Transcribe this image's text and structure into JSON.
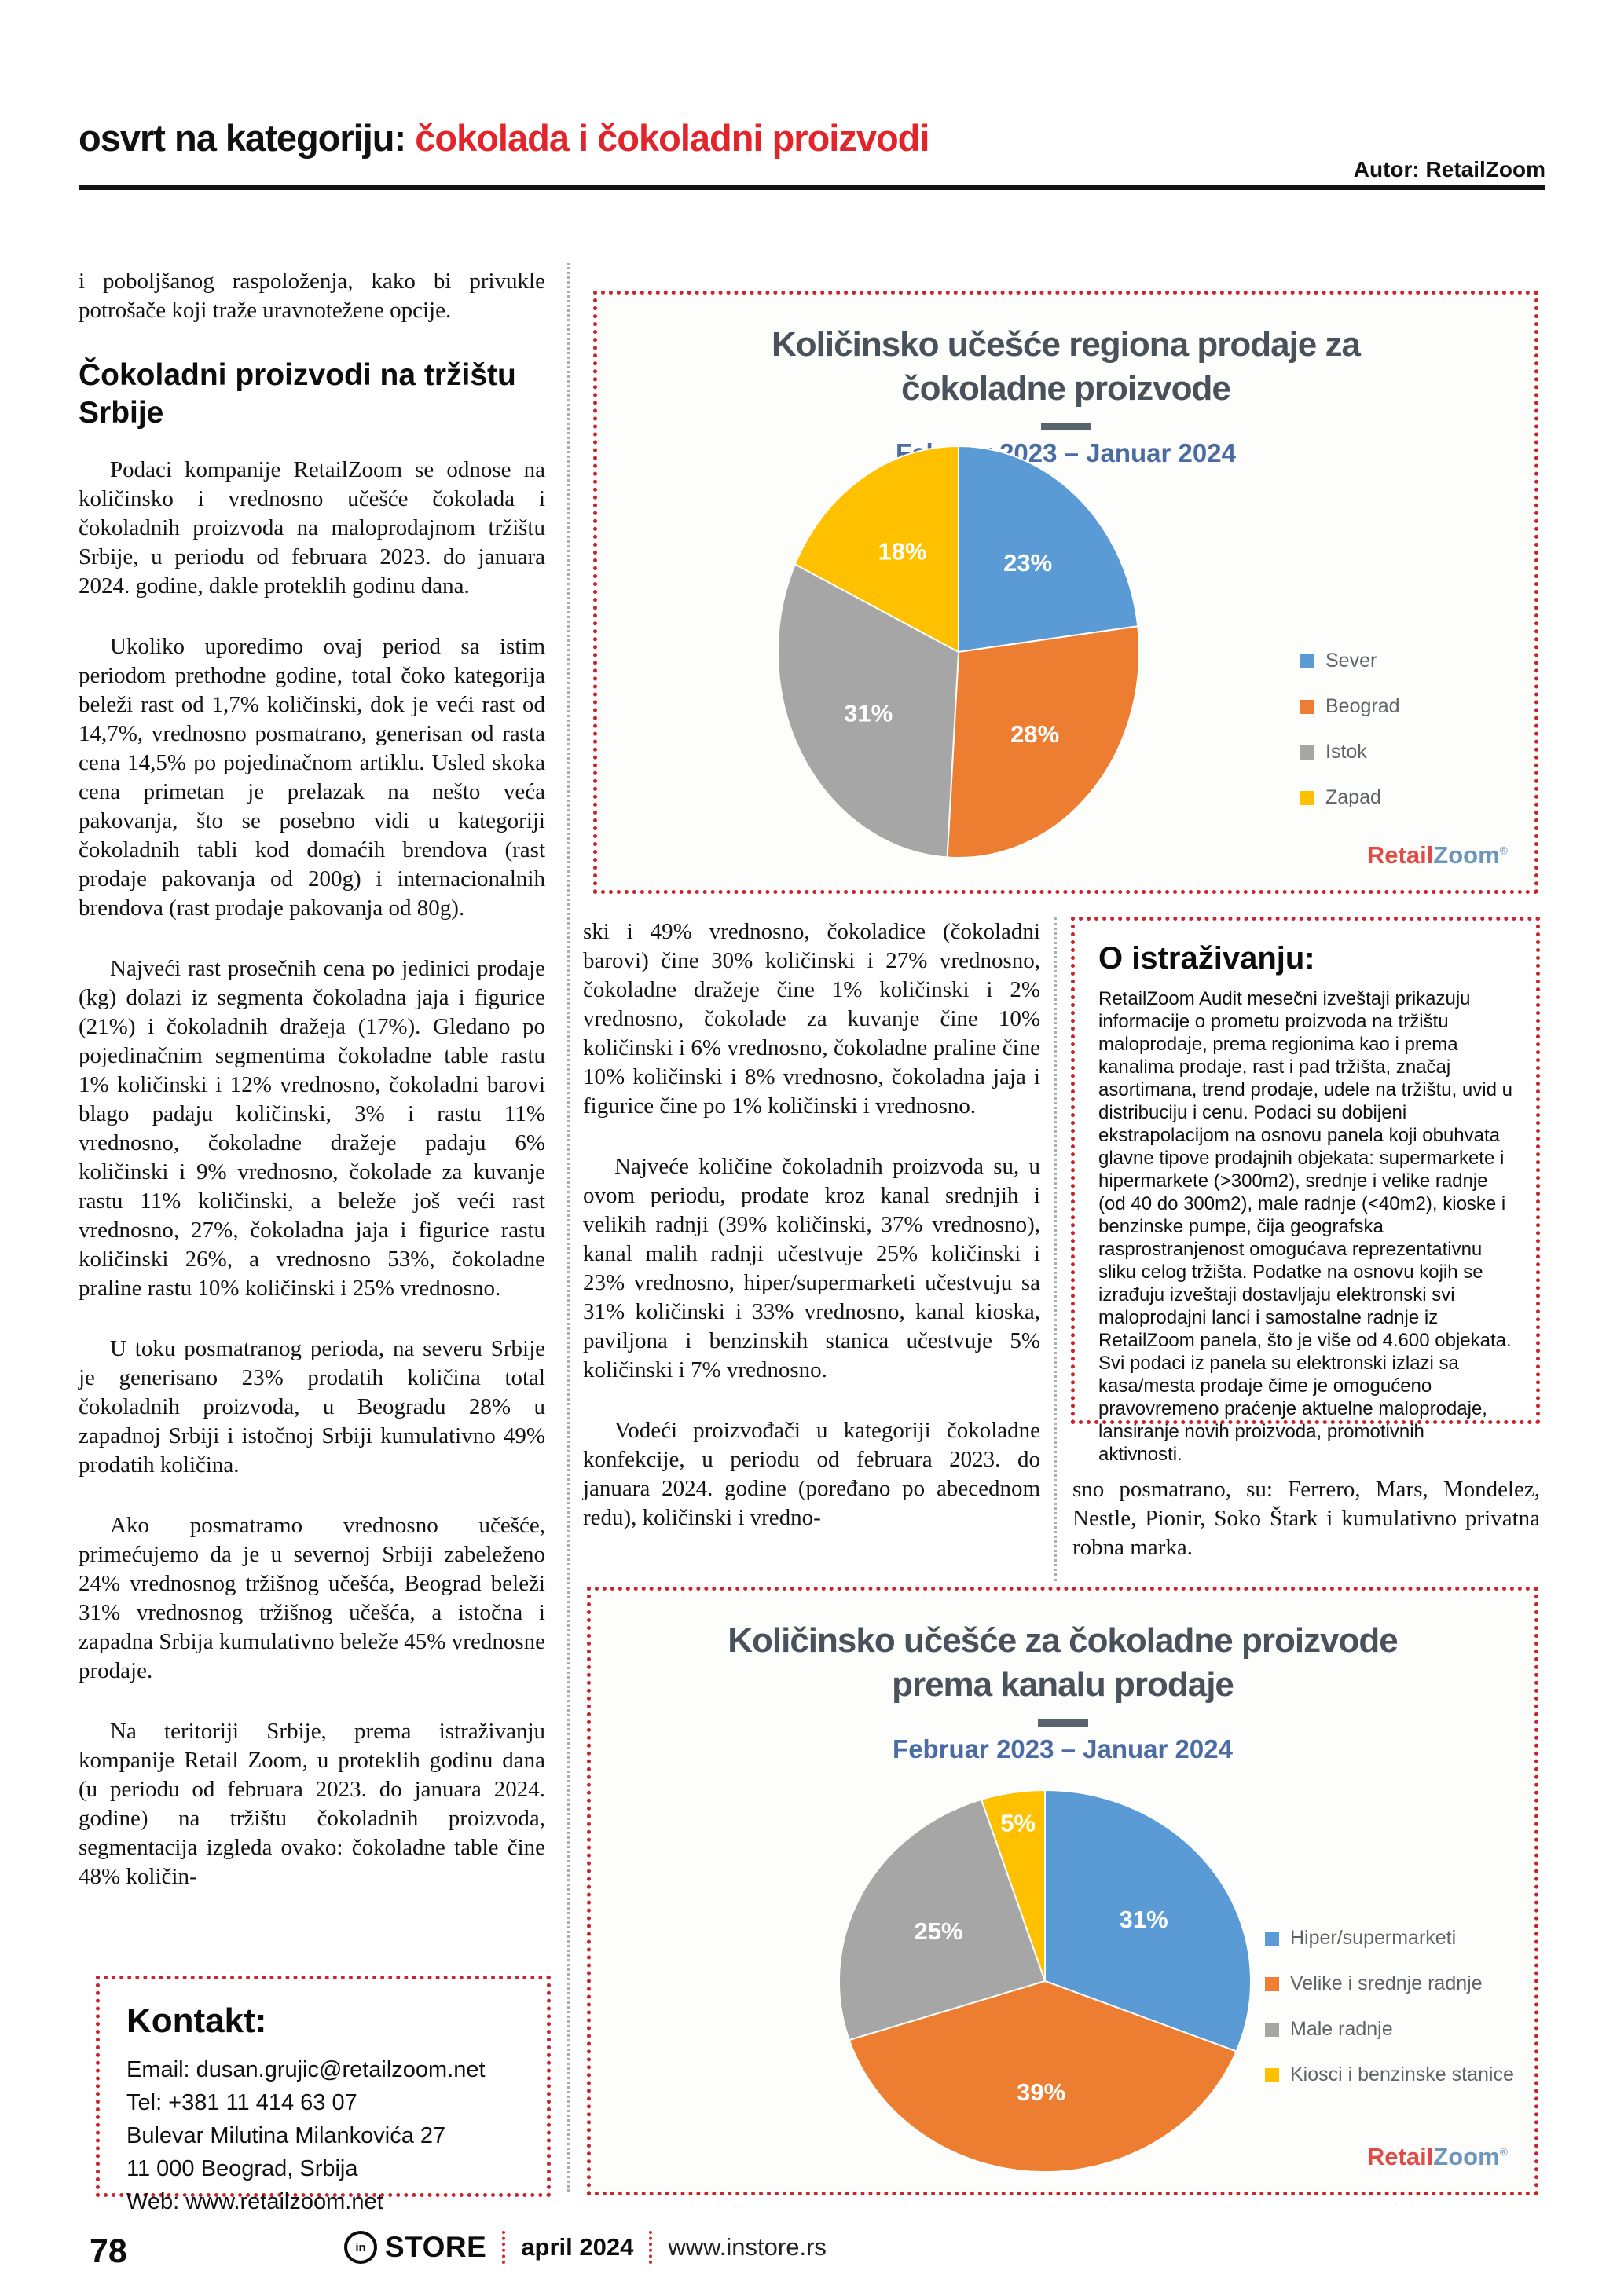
{
  "header": {
    "title_black": "osvrt na kategoriju: ",
    "title_red": "čokolada i čokoladni proizvodi",
    "author": "Autor: RetailZoom"
  },
  "article": {
    "col1": {
      "p1": "i poboljšanog raspoloženja, kako bi privukle potrošače koji traže uravnotežene opcije.",
      "heading": "Čokoladni proizvodi na tržištu Srbije",
      "p2": "Podaci kompanije RetailZoom se odnose na količinsko i vrednosno učešće čokolada i čokoladnih proizvoda na maloprodajnom tržištu Srbije, u periodu od februara 2023. do januara 2024. godine, dakle proteklih godinu dana.",
      "p3": "Ukoliko uporedimo ovaj period sa istim periodom prethodne godine, total čoko kategorija beleži rast od 1,7% količinski, dok je veći rast od 14,7%, vrednosno posmatrano, generisan od rasta cena 14,5% po pojedinačnom artiklu. Usled skoka cena primetan je prelazak na nešto veća pakovanja, što se posebno vidi u kategoriji čokoladnih tabli kod domaćih brendova (rast prodaje pakovanja od 200g) i internacionalnih brendova (rast prodaje pakovanja od 80g).",
      "p4": "Najveći rast prosečnih cena po jedinici prodaje (kg) dolazi iz segmenta čokoladna jaja i figurice (21%) i čokoladnih dražeja (17%). Gledano po pojedinačnim segmentima čokoladne table rastu 1% količinski i 12% vrednosno, čokoladni barovi blago padaju količinski, 3% i rastu 11% vrednosno, čokoladne dražeje padaju 6% količinski i 9% vrednosno, čokolade za kuvanje rastu 11% količinski, a beleže još veći rast vrednosno, 27%, čokoladna jaja i figurice rastu količinski 26%, a vrednosno 53%, čokoladne praline rastu 10% količinski i 25% vrednosno.",
      "p5": "U toku posmatranog perioda, na severu Srbije je generisano 23% prodatih količina total čokoladnih proizvoda, u Beogradu 28% u zapadnoj Srbiji i istočnoj Srbiji kumulativno 49% prodatih količina.",
      "p6": "Ako posmatramo vrednosno učešće, primećujemo da je u severnoj Srbiji zabeleženo 24% vrednosnog tržišnog učešća, Beograd beleži 31% vrednosnog tržišnog učešća, a istočna i zapadna Srbija kumulativno beleže 45% vrednosne prodaje.",
      "p7": "Na teritoriji Srbije, prema istraživanju kompanije Retail Zoom, u proteklih godinu dana (u periodu od februara 2023. do januara 2024. godine) na tržištu čokoladnih proizvoda, segmentacija izgleda ovako: čokoladne table čine 48% količin-"
    },
    "col2": {
      "p8": "ski i 49% vrednosno, čokoladice (čokoladni barovi) čine 30% količinski i 27% vrednosno, čokoladne dražeje čine 1% količinski i 2% vrednosno, čokolade za kuvanje čine 10% količinski i 6% vrednosno, čokoladne praline čine 10% količinski i 8% vrednosno, čokoladna jaja i figurice čine po 1% količinski i vrednosno.",
      "p9": "Najveće količine čokoladnih proizvoda su, u ovom periodu, prodate kroz kanal srednjih i velikih radnji (39% količinski, 37% vrednosno), kanal malih radnji učestvuje 25% količinski i 23% vrednosno, hiper/supermarketi učestvuju sa 31% količinski i 33% vrednosno, kanal kioska, paviljona i benzinskih stanica učestvuje 5% količinski i 7% vrednosno.",
      "p10": "Vodeći proizvođači u kategoriji čokoladne konfekcije, u periodu od februara 2023. do januara 2024. godine (poređano po abecednom redu), količinski i vredno-"
    },
    "col3": {
      "p11": "sno posmatrano, su: Ferrero, Mars, Mondelez, Nestle, Pionir, Soko Štark i kumulativno privatna robna marka."
    }
  },
  "about_box": {
    "title": "O istraživanju:",
    "body": "RetailZoom Audit mesečni izveštaji prikazuju informacije o prometu proizvoda na tržištu maloprodaje, prema regionima kao i prema kanalima prodaje, rast i pad tržišta, značaj asortimana, trend prodaje, udele na tržištu, uvid u distribuciju i cenu. Podaci su dobijeni ekstrapolacijom na osnovu panela koji obuhvata glavne tipove prodajnih objekata: supermarkete i hipermarkete (>300m2), srednje i velike radnje (od 40 do 300m2), male radnje (<40m2), kioske i benzinske pumpe, čija geografska rasprostranjenost omogućava reprezentativnu sliku celog tržišta. Podatke na osnovu kojih se izrađuju izveštaji dostavljaju elektronski svi maloprodajni lanci i samostalne radnje iz RetailZoom panela, što je više od 4.600 objekata. Svi podaci iz panela su elektronski izlazi sa kasa/mesta prodaje čime je omogućeno pravovremeno praćenje aktuelne maloprodaje, lansiranje novih proizvoda, promotivnih aktivnosti."
  },
  "contact_box": {
    "title": "Kontakt:",
    "lines": [
      "Email: dusan.grujic@retailzoom.net",
      "Tel:  +381 11 414 63 07",
      "Bulevar Milutina Milankovića 27",
      "11 000 Beograd, Srbija",
      "Web: www.retailzoom.net"
    ]
  },
  "branding": {
    "retail": "Retail",
    "zoom": "Zoom",
    "reg": "®"
  },
  "chart_data": [
    {
      "type": "pie",
      "title": "Količinsko učešće regiona prodaje za čokoladne proizvode",
      "title_lines": [
        "Količinsko učešće regiona prodaje za",
        "čokoladne proizvode"
      ],
      "subtitle": "Februar 2023 – Januar 2024",
      "categories": [
        "Sever",
        "Beograd",
        "Istok",
        "Zapad"
      ],
      "values": [
        23,
        28,
        31,
        18
      ],
      "colors": [
        "#5b9bd5",
        "#ed7d31",
        "#a6a6a6",
        "#ffc000"
      ],
      "legend_position": "right",
      "source": "RetailZoom"
    },
    {
      "type": "pie",
      "title": "Količinsko učešće za čokoladne proizvode prema kanalu prodaje",
      "title_lines": [
        "Količinsko učešće za čokoladne proizvode",
        "prema kanalu prodaje"
      ],
      "subtitle": "Februar 2023 – Januar 2024",
      "categories": [
        "Hiper/supermarketi",
        "Velike i srednje radnje",
        "Male radnje",
        "Kiosci i benzinske stanice"
      ],
      "values": [
        31,
        39,
        25,
        5
      ],
      "colors": [
        "#5b9bd5",
        "#ed7d31",
        "#a6a6a6",
        "#ffc000"
      ],
      "legend_position": "right",
      "source": "RetailZoom"
    }
  ],
  "footer": {
    "page_number": "78",
    "brand_icon": "in",
    "brand": "STORE",
    "issue": "april 2024",
    "website": "www.instore.rs"
  }
}
